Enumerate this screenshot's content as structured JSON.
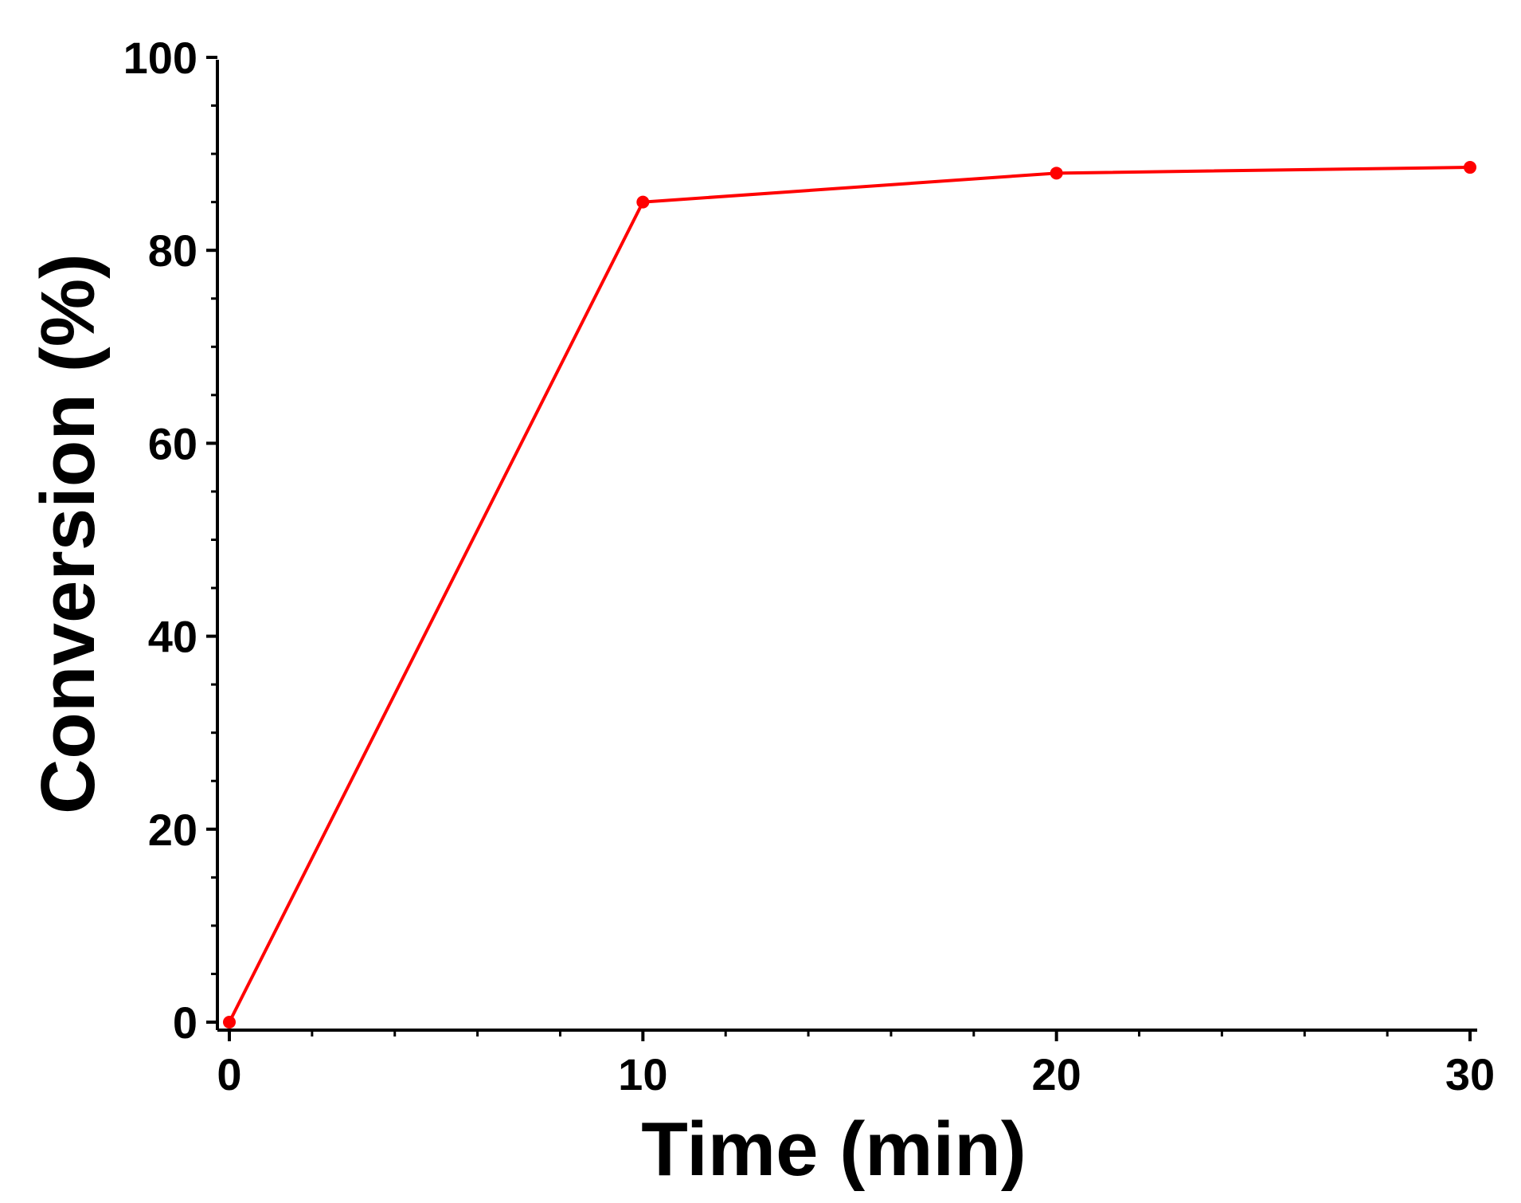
{
  "chart_data": {
    "type": "line",
    "title": "",
    "xlabel": "Time (min)",
    "ylabel": "Conversion (%)",
    "xlim": [
      0,
      30
    ],
    "ylim": [
      0,
      100
    ],
    "x_ticks": [
      "0",
      "10",
      "20",
      "30"
    ],
    "y_ticks": [
      "0",
      "20",
      "40",
      "60",
      "80",
      "100"
    ],
    "grid": false,
    "legend": "none",
    "series": [
      {
        "color": "#ff0000",
        "x": [
          0,
          10,
          20,
          30
        ],
        "y": [
          0,
          85,
          88,
          88.6
        ]
      }
    ]
  }
}
